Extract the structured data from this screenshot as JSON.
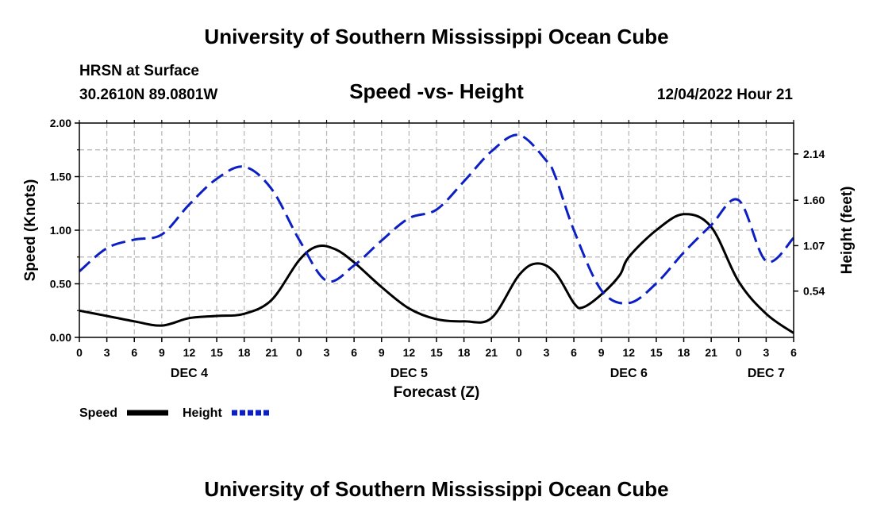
{
  "header": {
    "title": "University of Southern Mississippi Ocean Cube",
    "station": "HRSN at Surface",
    "coords": "30.2610N  89.0801W",
    "chart_title": "Speed -vs- Height",
    "datetime": "12/04/2022 Hour 21"
  },
  "footer": {
    "title": "University of Southern Mississippi Ocean Cube"
  },
  "legend": {
    "speed_label": "Speed",
    "height_label": "Height"
  },
  "colors": {
    "speed": "#000000",
    "height": "#0b1fc4",
    "grid": "#b5b5b5"
  },
  "chart_data": {
    "type": "line",
    "title": "Speed -vs- Height",
    "xlabel": "Forecast (Z)",
    "ylabel": "Speed (Knots)",
    "y2label": "Height (feet)",
    "x_hours_range": [
      0,
      78
    ],
    "x_tick_labels": [
      "0",
      "3",
      "6",
      "9",
      "12",
      "15",
      "18",
      "21",
      "0",
      "3",
      "6",
      "9",
      "12",
      "15",
      "18",
      "21",
      "0",
      "3",
      "6",
      "9",
      "12",
      "15",
      "18",
      "21",
      "0",
      "3",
      "6"
    ],
    "day_labels": [
      {
        "label": "DEC 4",
        "hour": 12
      },
      {
        "label": "DEC 5",
        "hour": 36
      },
      {
        "label": "DEC 6",
        "hour": 60
      },
      {
        "label": "DEC 7",
        "hour": 75
      }
    ],
    "ylim": [
      0,
      2.0
    ],
    "y_ticks": [
      "0.00",
      "0.50",
      "1.00",
      "1.50",
      "2.00"
    ],
    "y2lim": [
      0,
      2.5
    ],
    "y2_ticks": [
      "0.54",
      "1.07",
      "1.60",
      "2.14"
    ],
    "series": [
      {
        "name": "Speed",
        "axis": "left",
        "style": "solid",
        "x": [
          0,
          3,
          6,
          9,
          12,
          15,
          18,
          21,
          24,
          26,
          28,
          30,
          33,
          36,
          39,
          42,
          45,
          48,
          50,
          52,
          54,
          55,
          57,
          59,
          60,
          63,
          66,
          69,
          72,
          75,
          78
        ],
        "values": [
          0.25,
          0.2,
          0.15,
          0.11,
          0.18,
          0.2,
          0.22,
          0.35,
          0.72,
          0.85,
          0.82,
          0.7,
          0.47,
          0.27,
          0.17,
          0.15,
          0.18,
          0.58,
          0.69,
          0.6,
          0.32,
          0.28,
          0.4,
          0.58,
          0.75,
          1.0,
          1.15,
          1.03,
          0.52,
          0.22,
          0.04
        ]
      },
      {
        "name": "Height",
        "axis": "right",
        "style": "dashed",
        "x": [
          0,
          3,
          6,
          9,
          12,
          15,
          18,
          21,
          24,
          27,
          30,
          33,
          36,
          39,
          42,
          45,
          48,
          51,
          52,
          54,
          57,
          60,
          63,
          66,
          69,
          72,
          75,
          78
        ],
        "values": [
          0.77,
          1.04,
          1.14,
          1.2,
          1.55,
          1.85,
          1.99,
          1.73,
          1.14,
          0.66,
          0.84,
          1.13,
          1.39,
          1.49,
          1.82,
          2.17,
          2.36,
          2.06,
          1.87,
          1.25,
          0.55,
          0.4,
          0.63,
          0.99,
          1.31,
          1.6,
          0.89,
          1.16
        ]
      }
    ]
  }
}
